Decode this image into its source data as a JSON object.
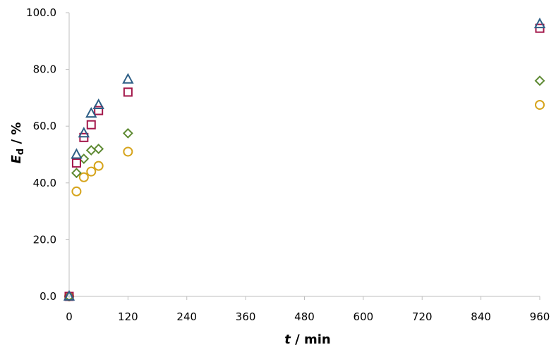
{
  "chart_data": {
    "type": "scatter",
    "xlabel": {
      "symbol": "t",
      "unit": " / min"
    },
    "ylabel": {
      "symbol": "E",
      "subscript": "d",
      "unit": " / %"
    },
    "xlim": [
      0,
      960
    ],
    "ylim": [
      0,
      100
    ],
    "x_ticks": [
      0,
      120,
      240,
      360,
      480,
      600,
      720,
      840,
      960
    ],
    "y_ticks": [
      "0.0",
      "20.0",
      "40.0",
      "60.0",
      "80.0",
      "100.0"
    ],
    "y_tick_values": [
      0,
      20,
      40,
      60,
      80,
      100
    ],
    "grid": false,
    "legend": "none",
    "series": [
      {
        "marker": "triangle",
        "color": "#2e5f86",
        "x": [
          0,
          15,
          30,
          45,
          60,
          120,
          960
        ],
        "y": [
          0,
          50.0,
          57.5,
          64.5,
          67.5,
          76.5,
          96.0
        ]
      },
      {
        "marker": "square",
        "color": "#a3174a",
        "x": [
          0,
          15,
          30,
          45,
          60,
          120,
          960
        ],
        "y": [
          0,
          47.0,
          56.0,
          60.5,
          65.5,
          72.0,
          94.5
        ]
      },
      {
        "marker": "diamond",
        "color": "#5e8a33",
        "x": [
          0,
          15,
          30,
          45,
          60,
          120,
          960
        ],
        "y": [
          0,
          43.5,
          48.5,
          51.5,
          52.0,
          57.5,
          76.0
        ]
      },
      {
        "marker": "circle",
        "color": "#d6a41c",
        "x": [
          0,
          15,
          30,
          45,
          60,
          120,
          960
        ],
        "y": [
          0,
          37.0,
          42.0,
          44.0,
          46.0,
          51.0,
          67.5
        ]
      }
    ]
  }
}
